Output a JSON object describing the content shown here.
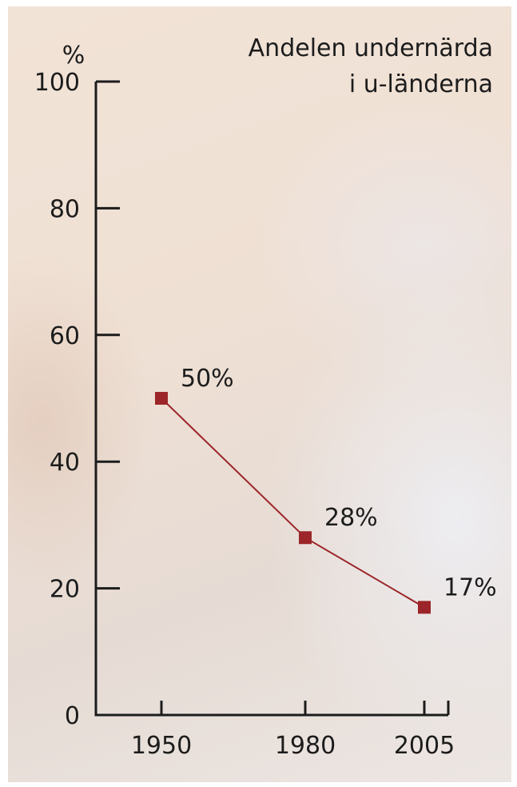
{
  "chart_data": {
    "type": "line",
    "title": "Andelen undernärda",
    "title_line2": "i u-länderna",
    "ylabel": "%",
    "xlabel": "",
    "categories": [
      "1950",
      "1980",
      "2005"
    ],
    "y_ticks": [
      "0",
      "20",
      "40",
      "60",
      "80",
      "100"
    ],
    "ylim": [
      0,
      100
    ],
    "grid": false,
    "series": [
      {
        "values": [
          50,
          28,
          17
        ],
        "labels": [
          "50%",
          "28%",
          "17%"
        ],
        "color": "#9b2528"
      }
    ]
  },
  "colors": {
    "axis": "#1c1c1c",
    "line": "#9b2528",
    "background": "#efe0d4"
  }
}
